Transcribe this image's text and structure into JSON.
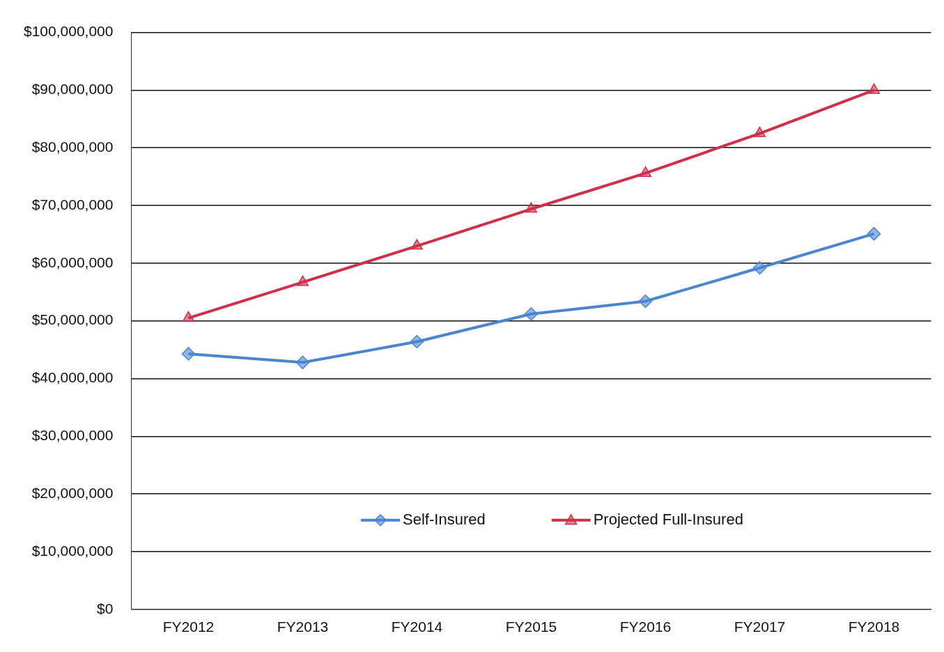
{
  "chart_data": {
    "type": "line",
    "categories": [
      "FY2012",
      "FY2013",
      "FY2014",
      "FY2015",
      "FY2016",
      "FY2017",
      "FY2018"
    ],
    "series": [
      {
        "name": "Self-Insured",
        "color": "#4a86d0",
        "marker": "diamond",
        "values": [
          44300000,
          42800000,
          46400000,
          51200000,
          53400000,
          59200000,
          65100000
        ]
      },
      {
        "name": "Projected Full-Insured",
        "color": "#d02f4a",
        "marker": "triangle",
        "values": [
          50500000,
          56700000,
          63000000,
          69400000,
          75600000,
          82500000,
          90000000
        ]
      }
    ],
    "ylim": [
      0,
      100000000
    ],
    "yticks": [
      {
        "value": 0,
        "label": "$0"
      },
      {
        "value": 10000000,
        "label": "$10,000,000"
      },
      {
        "value": 20000000,
        "label": "$20,000,000"
      },
      {
        "value": 30000000,
        "label": "$30,000,000"
      },
      {
        "value": 40000000,
        "label": "$40,000,000"
      },
      {
        "value": 50000000,
        "label": "$50,000,000"
      },
      {
        "value": 60000000,
        "label": "$60,000,000"
      },
      {
        "value": 70000000,
        "label": "$70,000,000"
      },
      {
        "value": 80000000,
        "label": "$80,000,000"
      },
      {
        "value": 90000000,
        "label": "$90,000,000"
      },
      {
        "value": 100000000,
        "label": "$100,000,000"
      }
    ],
    "grid": "y",
    "legend": "bottom"
  }
}
